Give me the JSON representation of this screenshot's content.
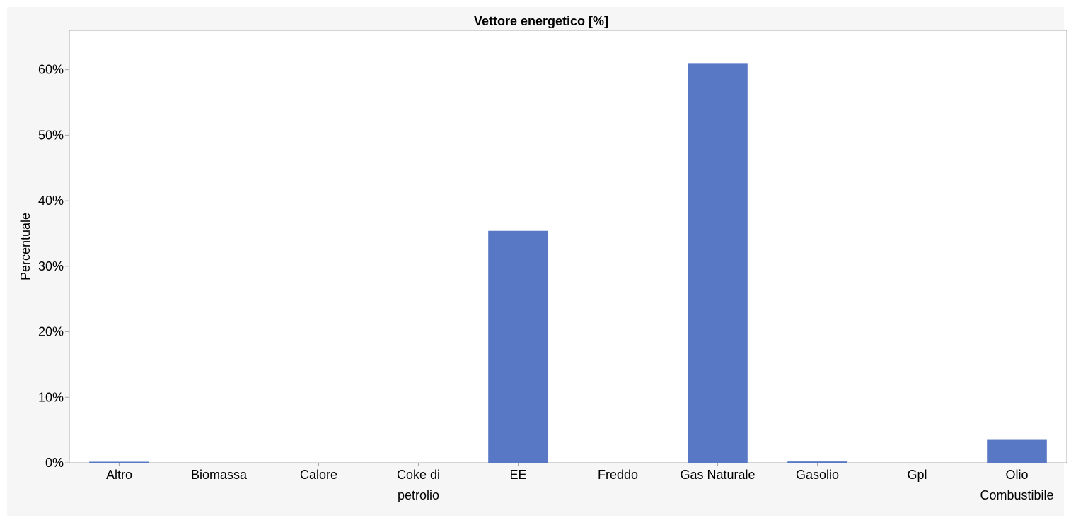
{
  "chart_data": {
    "type": "bar",
    "title": "Vettore energetico [%]",
    "xlabel": "",
    "ylabel": "Percentuale",
    "categories": [
      [
        "Altro"
      ],
      [
        "Biomassa"
      ],
      [
        "Calore"
      ],
      [
        "Coke di",
        "petrolio"
      ],
      [
        "EE"
      ],
      [
        "Freddo"
      ],
      [
        "Gas Naturale"
      ],
      [
        "Gasolio"
      ],
      [
        "Gpl"
      ],
      [
        "Olio",
        "Combustibile"
      ]
    ],
    "values": [
      0.1,
      0,
      0,
      0,
      35.4,
      0,
      61.0,
      0.2,
      0,
      3.5
    ],
    "ylim": [
      0,
      66
    ],
    "yticks": [
      0,
      10,
      20,
      30,
      40,
      50,
      60
    ],
    "ytick_labels": [
      "0%",
      "10%",
      "20%",
      "30%",
      "40%",
      "50%",
      "60%"
    ],
    "grid": false,
    "legend": "none",
    "colors": {
      "bar": "#5878c5",
      "panel_background": "#f6f6f6",
      "plot_background": "#ffffff",
      "axis": "#a8a8a8"
    }
  }
}
